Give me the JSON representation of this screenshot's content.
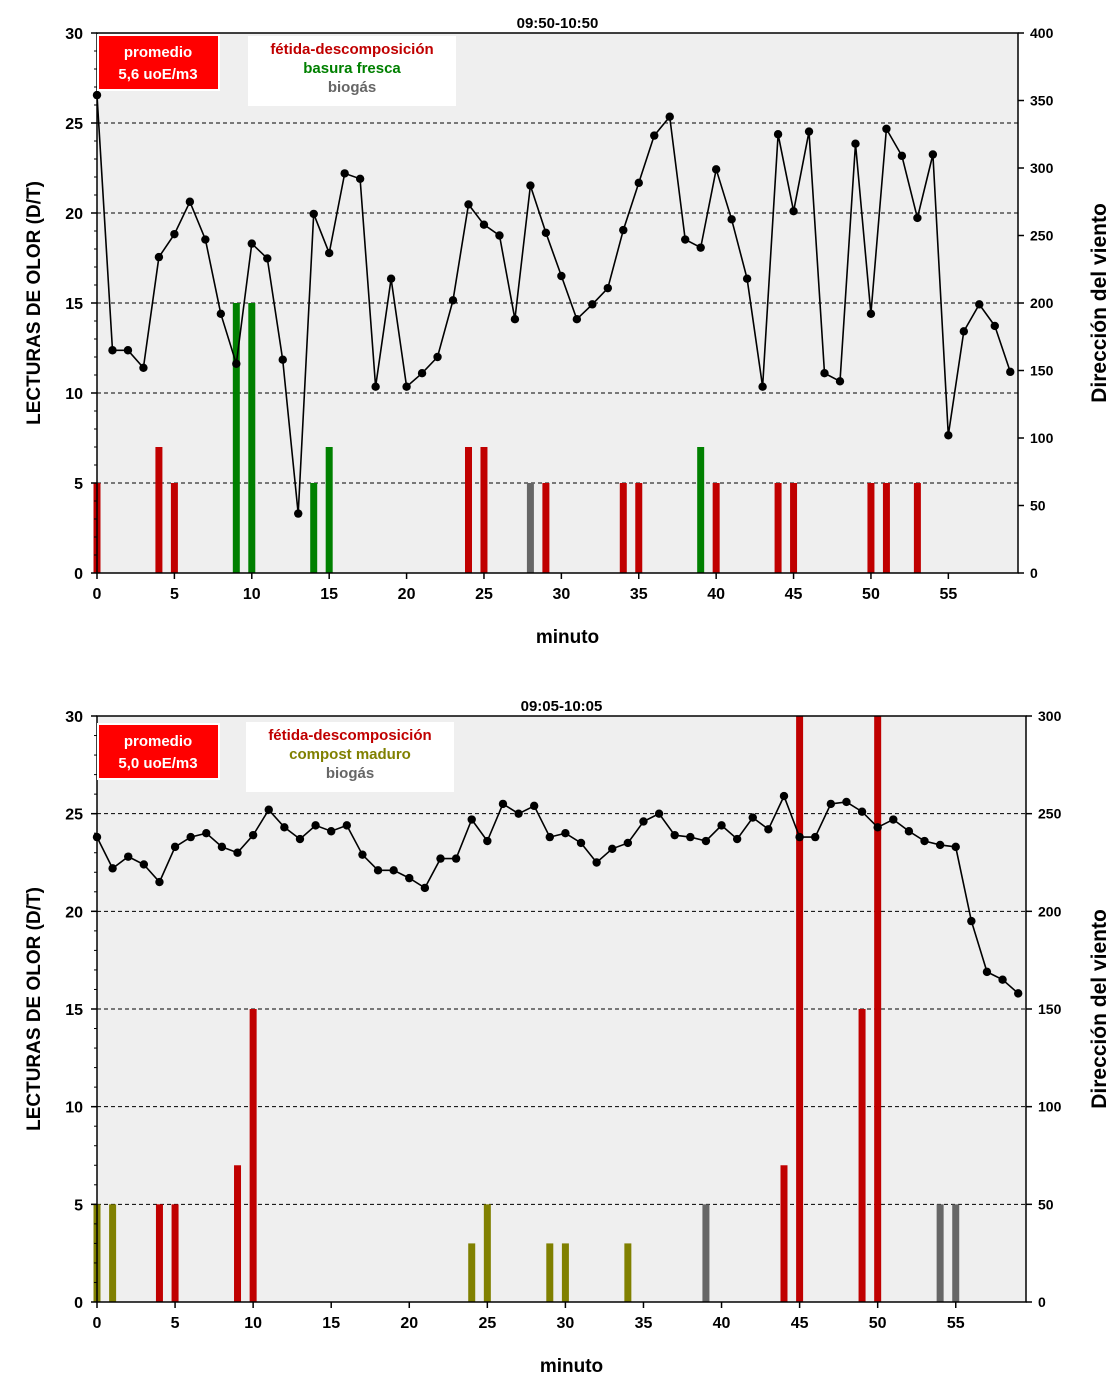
{
  "chart_data": [
    {
      "type": "bar",
      "title": "09:50-10:50",
      "xlabel": "minuto",
      "ylabel": "LECTURAS DE OLOR (D/T)",
      "y2label": "Dirección del viento",
      "xlim": [
        0,
        59.5
      ],
      "xticks": [
        0,
        5,
        10,
        15,
        20,
        25,
        30,
        35,
        40,
        45,
        50,
        55
      ],
      "ylim": [
        0,
        30
      ],
      "yticks": [
        0,
        5,
        10,
        15,
        20,
        25,
        30
      ],
      "y2lim": [
        0,
        400
      ],
      "y2ticks": [
        0,
        50,
        100,
        150,
        200,
        250,
        300,
        350,
        400
      ],
      "grid": "horizontal dashed at 5,10,15,20,25",
      "badge": {
        "line1": "promedio",
        "line2": "5,6 uoE/m3",
        "color": "#ff0000"
      },
      "legend": [
        {
          "label": "fétida-descomposición",
          "color": "#c00000"
        },
        {
          "label": "basura fresca",
          "color": "#008000"
        },
        {
          "label": "biogás",
          "color": "#666666"
        }
      ],
      "bars": [
        {
          "x": 0,
          "value": 5,
          "color": "#c00000"
        },
        {
          "x": 4,
          "value": 7,
          "color": "#c00000"
        },
        {
          "x": 5,
          "value": 5,
          "color": "#c00000"
        },
        {
          "x": 9,
          "value": 15,
          "color": "#008000"
        },
        {
          "x": 10,
          "value": 15,
          "color": "#008000"
        },
        {
          "x": 14,
          "value": 5,
          "color": "#008000"
        },
        {
          "x": 15,
          "value": 7,
          "color": "#008000"
        },
        {
          "x": 24,
          "value": 7,
          "color": "#c00000"
        },
        {
          "x": 25,
          "value": 7,
          "color": "#c00000"
        },
        {
          "x": 28,
          "value": 5,
          "color": "#666666"
        },
        {
          "x": 29,
          "value": 5,
          "color": "#c00000"
        },
        {
          "x": 34,
          "value": 5,
          "color": "#c00000"
        },
        {
          "x": 35,
          "value": 5,
          "color": "#c00000"
        },
        {
          "x": 39,
          "value": 7,
          "color": "#008000"
        },
        {
          "x": 40,
          "value": 5,
          "color": "#c00000"
        },
        {
          "x": 44,
          "value": 5,
          "color": "#c00000"
        },
        {
          "x": 45,
          "value": 5,
          "color": "#c00000"
        },
        {
          "x": 50,
          "value": 5,
          "color": "#c00000"
        },
        {
          "x": 51,
          "value": 5,
          "color": "#c00000"
        },
        {
          "x": 53,
          "value": 5,
          "color": "#c00000"
        }
      ],
      "wind_series": [
        354,
        165,
        165,
        152,
        234,
        251,
        275,
        247,
        192,
        155,
        244,
        233,
        158,
        44,
        266,
        237,
        296,
        292,
        138,
        218,
        138,
        148,
        160,
        202,
        273,
        258,
        250,
        188,
        287,
        252,
        220,
        188,
        199,
        211,
        254,
        289,
        324,
        338,
        247,
        241,
        299,
        262,
        218,
        138,
        325,
        268,
        327,
        148,
        142,
        318,
        192,
        329,
        309,
        263,
        310,
        102,
        179,
        199,
        183,
        149
      ]
    },
    {
      "type": "bar",
      "title": "09:05-10:05",
      "xlabel": "minuto",
      "ylabel": "LECTURAS DE OLOR (D/T)",
      "y2label": "Dirección del viento",
      "xlim": [
        0,
        59.5
      ],
      "xticks": [
        0,
        5,
        10,
        15,
        20,
        25,
        30,
        35,
        40,
        45,
        50,
        55
      ],
      "ylim": [
        0,
        30
      ],
      "yticks": [
        0,
        5,
        10,
        15,
        20,
        25,
        30
      ],
      "y2lim": [
        0,
        300
      ],
      "y2ticks": [
        0,
        50,
        100,
        150,
        200,
        250,
        300
      ],
      "grid": "horizontal dashed at 5,10,15,20,25",
      "badge": {
        "line1": "promedio",
        "line2": "5,0 uoE/m3",
        "color": "#ff0000"
      },
      "legend": [
        {
          "label": "fétida-descomposición",
          "color": "#c00000"
        },
        {
          "label": "compost maduro",
          "color": "#808000"
        },
        {
          "label": "biogás",
          "color": "#666666"
        }
      ],
      "bars": [
        {
          "x": 0,
          "value": 5,
          "color": "#808000"
        },
        {
          "x": 1,
          "value": 5,
          "color": "#808000"
        },
        {
          "x": 4,
          "value": 5,
          "color": "#c00000"
        },
        {
          "x": 5,
          "value": 5,
          "color": "#c00000"
        },
        {
          "x": 9,
          "value": 7,
          "color": "#c00000"
        },
        {
          "x": 10,
          "value": 15,
          "color": "#c00000"
        },
        {
          "x": 24,
          "value": 3,
          "color": "#808000"
        },
        {
          "x": 25,
          "value": 5,
          "color": "#808000"
        },
        {
          "x": 29,
          "value": 3,
          "color": "#808000"
        },
        {
          "x": 30,
          "value": 3,
          "color": "#808000"
        },
        {
          "x": 34,
          "value": 3,
          "color": "#808000"
        },
        {
          "x": 39,
          "value": 5,
          "color": "#666666"
        },
        {
          "x": 44,
          "value": 7,
          "color": "#c00000"
        },
        {
          "x": 45,
          "value": 30,
          "color": "#c00000"
        },
        {
          "x": 49,
          "value": 15,
          "color": "#c00000"
        },
        {
          "x": 50,
          "value": 30,
          "color": "#c00000"
        },
        {
          "x": 54,
          "value": 5,
          "color": "#666666"
        },
        {
          "x": 55,
          "value": 5,
          "color": "#666666"
        }
      ],
      "wind_series": [
        238,
        222,
        228,
        224,
        215,
        233,
        238,
        240,
        233,
        230,
        239,
        252,
        243,
        237,
        244,
        241,
        244,
        229,
        221,
        221,
        217,
        212,
        227,
        227,
        247,
        236,
        255,
        250,
        254,
        238,
        240,
        235,
        225,
        232,
        235,
        246,
        250,
        239,
        238,
        236,
        244,
        237,
        248,
        242,
        259,
        238,
        238,
        255,
        256,
        251,
        243,
        247,
        241,
        236,
        234,
        233,
        195,
        169,
        165,
        158
      ]
    }
  ]
}
